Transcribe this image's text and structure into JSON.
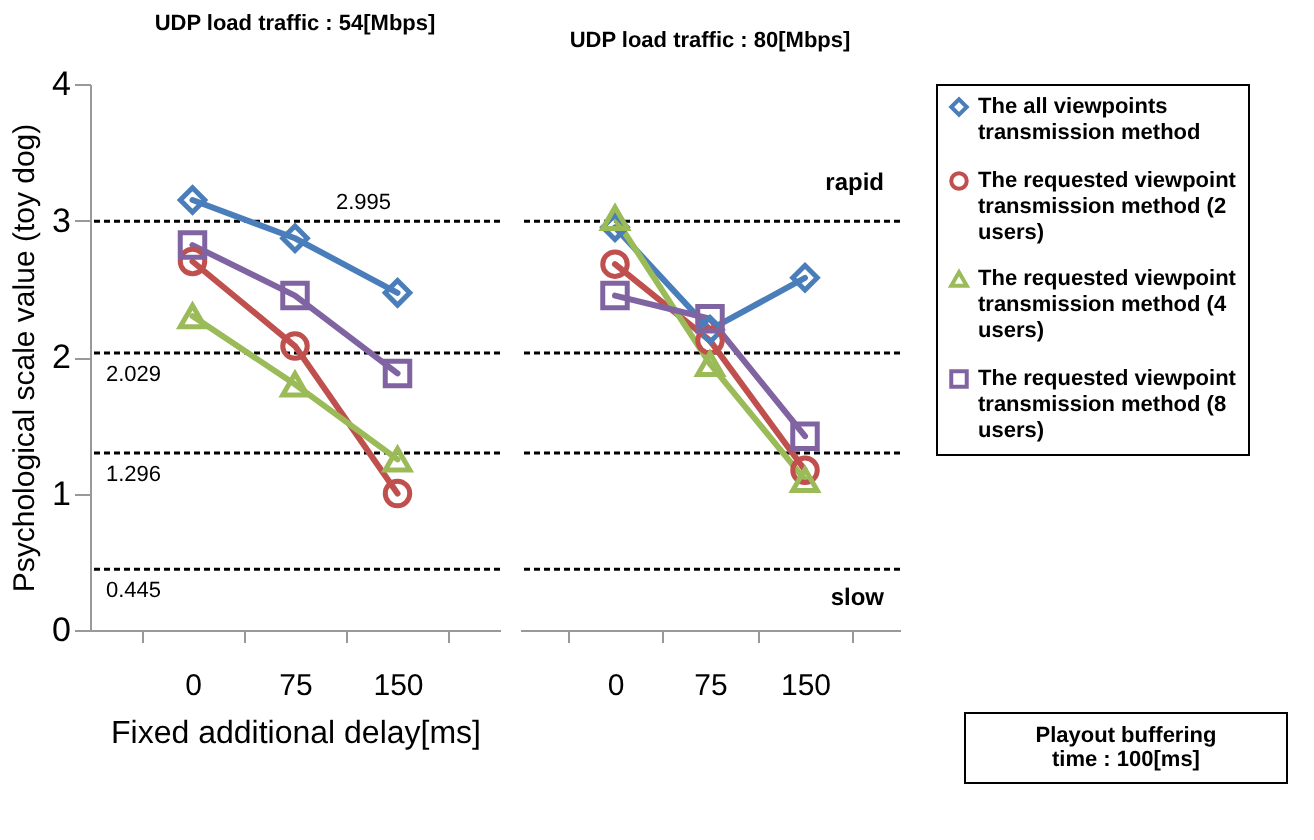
{
  "chart_data": [
    {
      "type": "line",
      "title": "UDP load traffic : 54[Mbps]",
      "xlabel": "Fixed additional delay[ms]",
      "ylabel": "Psychological scale value (toy dog)",
      "categories": [
        "0",
        "75",
        "150"
      ],
      "ylim": [
        0,
        4
      ],
      "yticks": [
        0,
        1,
        2,
        3,
        4
      ],
      "legend": false,
      "ref_lines": [
        {
          "axis": "y",
          "value": 2.995,
          "label": "2.995",
          "color": "#000000",
          "line_style": "dashed"
        },
        {
          "axis": "y",
          "value": 2.029,
          "label": "2.029",
          "color": "#000000",
          "line_style": "dashed"
        },
        {
          "axis": "y",
          "value": 1.296,
          "label": "1.296",
          "color": "#000000",
          "line_style": "dashed"
        },
        {
          "axis": "y",
          "value": 0.445,
          "label": "0.445",
          "color": "#000000",
          "line_style": "dashed"
        }
      ],
      "series": [
        {
          "color": "#4a7ebb",
          "marker": "diamond",
          "values": [
            3.15,
            2.87,
            2.47
          ]
        },
        {
          "color": "#c0504d",
          "marker": "circle",
          "values": [
            2.7,
            2.08,
            1.0
          ]
        },
        {
          "color": "#9bbb59",
          "marker": "triangle",
          "values": [
            2.3,
            1.8,
            1.25
          ]
        },
        {
          "color": "#8064a2",
          "marker": "square",
          "values": [
            2.82,
            2.45,
            1.88
          ]
        }
      ]
    },
    {
      "type": "line",
      "title": "UDP load traffic : 80[Mbps]",
      "categories": [
        "0",
        "75",
        "150"
      ],
      "ylim": [
        0,
        4
      ],
      "yticks": [
        0,
        1,
        2,
        3,
        4
      ],
      "tick_labels": "x",
      "legend": "right",
      "annotations": [
        "rapid",
        "slow",
        "Playout buffering time : 100[ms]"
      ],
      "ref_lines": [
        {
          "axis": "y",
          "value": 2.995,
          "color": "#000000",
          "line_style": "dashed"
        },
        {
          "axis": "y",
          "value": 2.029,
          "color": "#000000",
          "line_style": "dashed"
        },
        {
          "axis": "y",
          "value": 1.296,
          "color": "#000000",
          "line_style": "dashed"
        },
        {
          "axis": "y",
          "value": 0.445,
          "color": "#000000",
          "line_style": "dashed"
        }
      ],
      "series": [
        {
          "name": "The all viewpoints transmission method",
          "color": "#4a7ebb",
          "marker": "diamond",
          "values": [
            2.95,
            2.2,
            2.58
          ]
        },
        {
          "name": "The requested viewpoint transmission method (2 users)",
          "color": "#c0504d",
          "marker": "circle",
          "values": [
            2.68,
            2.12,
            1.17
          ]
        },
        {
          "name": "The requested viewpoint transmission method (4 users)",
          "color": "#9bbb59",
          "marker": "triangle",
          "values": [
            3.02,
            1.95,
            1.1
          ]
        },
        {
          "name": "The requested viewpoint transmission method (8 users)",
          "color": "#8064a2",
          "marker": "square",
          "values": [
            2.45,
            2.28,
            1.42
          ]
        }
      ]
    }
  ]
}
